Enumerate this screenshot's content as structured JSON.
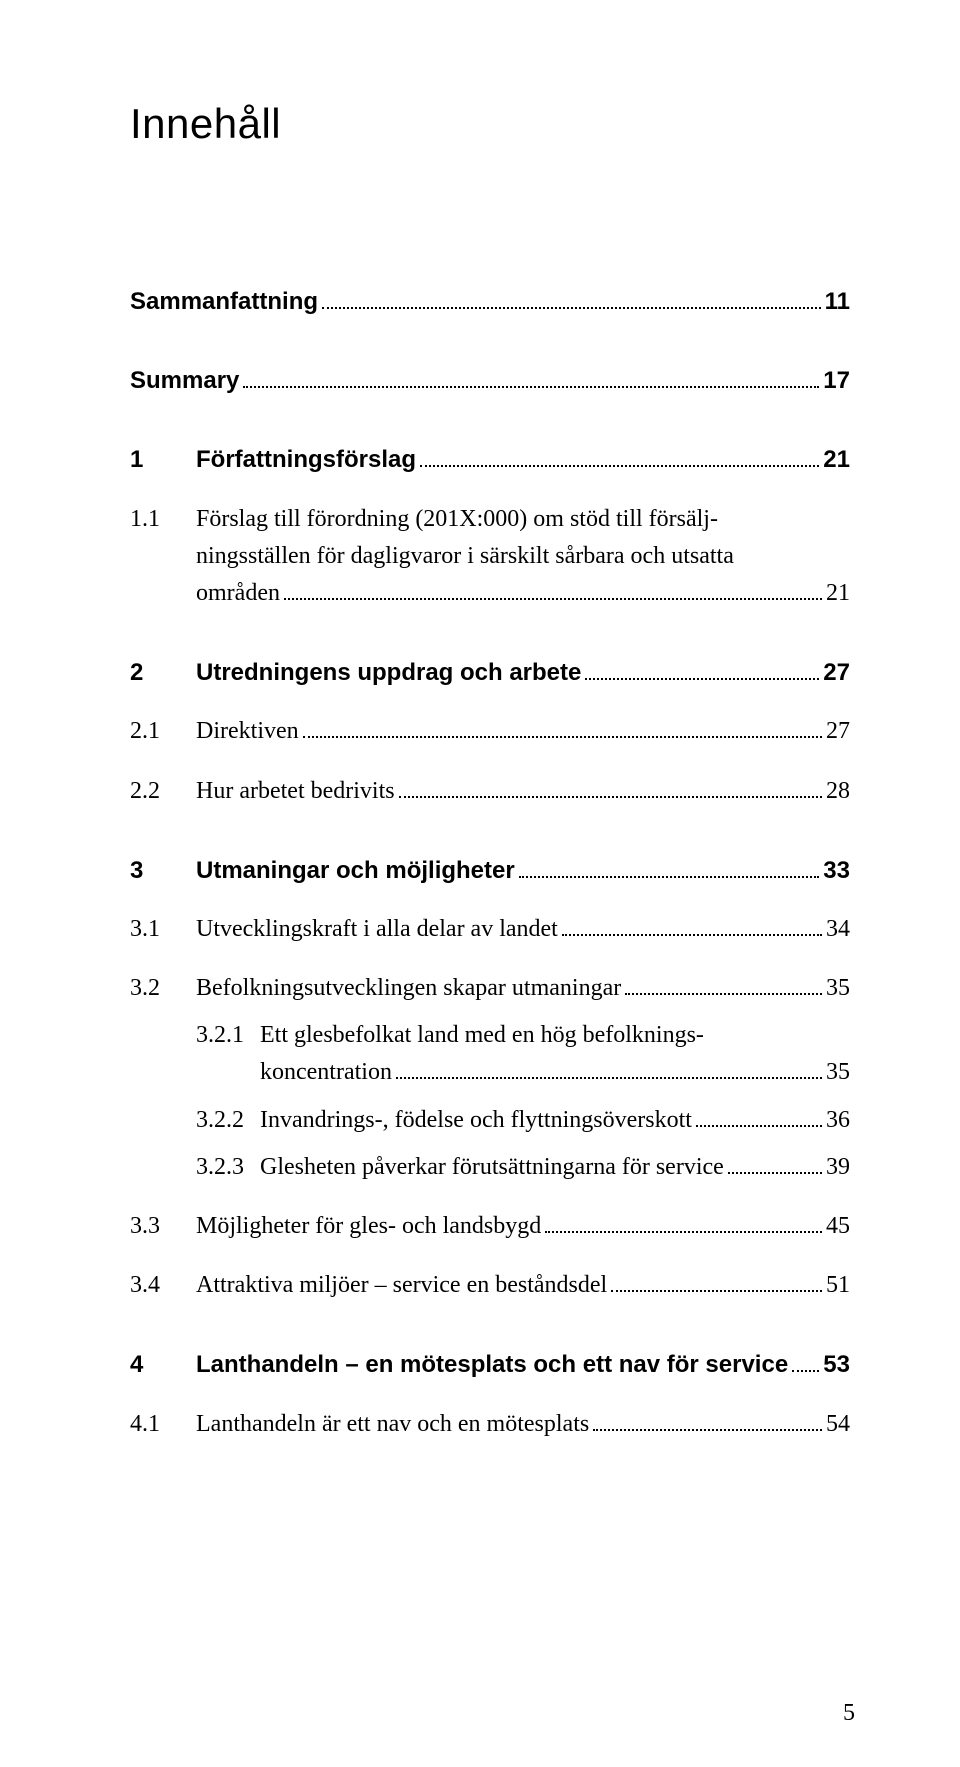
{
  "title": "Innehåll",
  "entries": [
    {
      "type": "sans",
      "num": "",
      "label": "Sammanfattning",
      "page": "11",
      "pad": 0,
      "gap": ""
    },
    {
      "type": "sans",
      "num": "",
      "label": "Summary",
      "page": "17",
      "pad": 0,
      "gap": "gap-lg"
    },
    {
      "type": "sans",
      "num": "1",
      "label": "Författningsförslag",
      "page": "21",
      "pad": 66,
      "gap": "gap-lg"
    },
    {
      "type": "wrap2",
      "num": "1.1",
      "label1": "Förslag till förordning (201X:000) om stöd till försälj-",
      "label2": "ningsställen för dagligvaror i särskilt sårbara och utsatta",
      "label3": "områden",
      "page": "21",
      "pad": 66,
      "gap": "gap-md"
    },
    {
      "type": "sans",
      "num": "2",
      "label": "Utredningens uppdrag och arbete",
      "page": "27",
      "pad": 66,
      "gap": "gap-lg"
    },
    {
      "type": "serif",
      "num": "2.1",
      "label": "Direktiven",
      "page": "27",
      "pad": 66,
      "gap": "gap-md"
    },
    {
      "type": "serif",
      "num": "2.2",
      "label": "Hur arbetet bedrivits",
      "page": "28",
      "pad": 66,
      "gap": "gap-md"
    },
    {
      "type": "sans",
      "num": "3",
      "label": "Utmaningar och möjligheter",
      "page": "33",
      "pad": 66,
      "gap": "gap-lg"
    },
    {
      "type": "serif",
      "num": "3.1",
      "label": "Utvecklingskraft i alla delar av landet",
      "page": "34",
      "pad": 66,
      "gap": "gap-md"
    },
    {
      "type": "serif",
      "num": "3.2",
      "label": "Befolkningsutvecklingen skapar utmaningar",
      "page": "35",
      "pad": 66,
      "gap": "gap-md"
    },
    {
      "type": "wrap1",
      "num": "3.2.1",
      "label1": "Ett glesbefolkat land med en hög befolknings-",
      "label2": "koncentration",
      "page": "35",
      "pad": 130,
      "subpad": 66,
      "gap": ""
    },
    {
      "type": "serif",
      "num": "3.2.2",
      "label": "Invandrings-, födelse och flyttningsöverskott",
      "page": "36",
      "pad": 130,
      "subpad": 66,
      "gap": ""
    },
    {
      "type": "serif",
      "num": "3.2.3",
      "label": "Glesheten påverkar förutsättningarna för service",
      "page": "39",
      "pad": 130,
      "subpad": 66,
      "gap": ""
    },
    {
      "type": "serif",
      "num": "3.3",
      "label": "Möjligheter för gles- och landsbygd",
      "page": "45",
      "pad": 66,
      "gap": "gap-md"
    },
    {
      "type": "serif",
      "num": "3.4",
      "label": "Attraktiva miljöer – service en beståndsdel",
      "page": "51",
      "pad": 66,
      "gap": "gap-md"
    },
    {
      "type": "sans",
      "num": "4",
      "label": "Lanthandeln – en mötesplats och ett nav för service",
      "page": "53",
      "pad": 66,
      "gap": "gap-lg"
    },
    {
      "type": "serif",
      "num": "4.1",
      "label": "Lanthandeln är ett nav och en mötesplats",
      "page": "54",
      "pad": 66,
      "gap": "gap-md"
    }
  ],
  "pageNumber": "5"
}
